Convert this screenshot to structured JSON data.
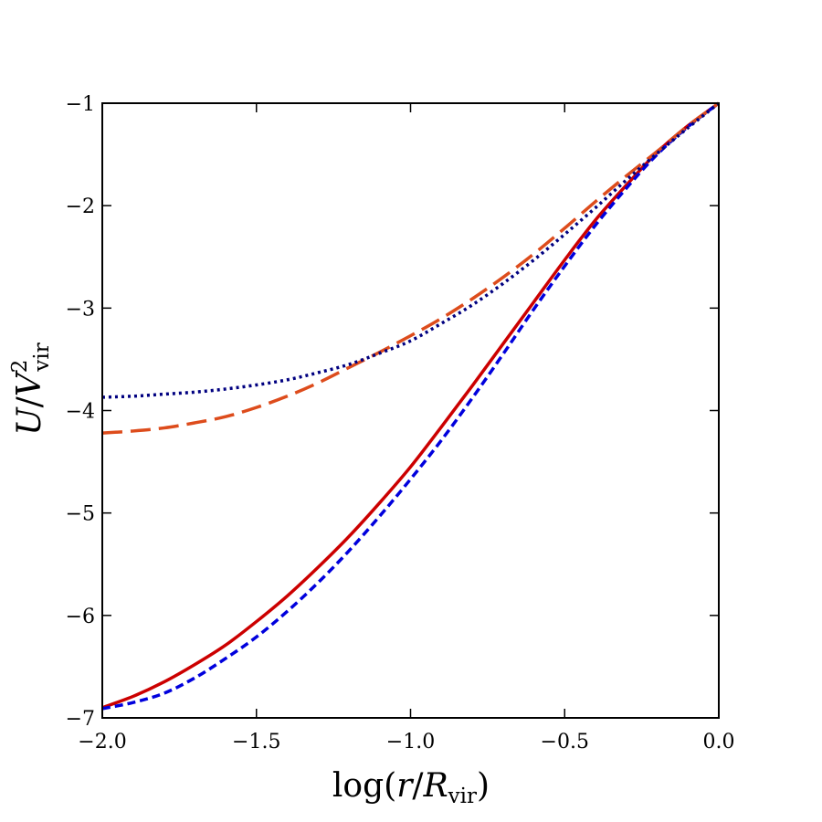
{
  "chart_data": {
    "type": "line",
    "title": "",
    "xlabel": {
      "prefix": "log(",
      "r": "r",
      "slash": "/",
      "R": "R",
      "sub": "vir",
      "suffix": ")"
    },
    "ylabel": {
      "U": "U",
      "slash": "/",
      "V": "V",
      "sup": "2",
      "sub": "vir"
    },
    "xlim": [
      -2.0,
      0.0
    ],
    "ylim": [
      -7,
      -1
    ],
    "xticks": [
      -2.0,
      -1.5,
      -1.0,
      -0.5,
      0.0
    ],
    "xtick_labels": [
      "−2.0",
      "−1.5",
      "−1.0",
      "−0.5",
      "0.0"
    ],
    "yticks": [
      -1,
      -2,
      -3,
      -4,
      -5,
      -6,
      -7
    ],
    "ytick_labels": [
      "−1",
      "−2",
      "−3",
      "−4",
      "−5",
      "−6",
      "−7"
    ],
    "grid": false,
    "series": [
      {
        "name": "solid-red",
        "color": "#cc0000",
        "dash": "solid",
        "x": [
          -2.0,
          -1.9,
          -1.8,
          -1.7,
          -1.6,
          -1.5,
          -1.4,
          -1.3,
          -1.2,
          -1.1,
          -1.0,
          -0.9,
          -0.8,
          -0.7,
          -0.6,
          -0.5,
          -0.4,
          -0.3,
          -0.2,
          -0.1,
          0.0
        ],
        "y": [
          -6.9,
          -6.79,
          -6.65,
          -6.48,
          -6.29,
          -6.06,
          -5.81,
          -5.53,
          -5.23,
          -4.9,
          -4.55,
          -4.16,
          -3.76,
          -3.35,
          -2.94,
          -2.53,
          -2.14,
          -1.8,
          -1.48,
          -1.22,
          -1.0
        ]
      },
      {
        "name": "short-dash-blue",
        "color": "#0000dd",
        "dash": "short",
        "x": [
          -2.0,
          -1.9,
          -1.8,
          -1.7,
          -1.6,
          -1.5,
          -1.4,
          -1.3,
          -1.2,
          -1.1,
          -1.0,
          -0.9,
          -0.8,
          -0.7,
          -0.6,
          -0.5,
          -0.4,
          -0.3,
          -0.2,
          -0.1,
          0.0
        ],
        "y": [
          -6.91,
          -6.85,
          -6.76,
          -6.61,
          -6.42,
          -6.21,
          -5.96,
          -5.68,
          -5.37,
          -5.03,
          -4.67,
          -4.29,
          -3.88,
          -3.45,
          -3.01,
          -2.59,
          -2.19,
          -1.83,
          -1.5,
          -1.23,
          -1.0
        ]
      },
      {
        "name": "long-dash-orange",
        "color": "#dd4c1c",
        "dash": "long",
        "x": [
          -2.0,
          -1.9,
          -1.8,
          -1.7,
          -1.6,
          -1.5,
          -1.4,
          -1.3,
          -1.2,
          -1.1,
          -1.0,
          -0.9,
          -0.8,
          -0.7,
          -0.6,
          -0.5,
          -0.4,
          -0.3,
          -0.2,
          -0.1,
          0.0
        ],
        "y": [
          -4.22,
          -4.2,
          -4.17,
          -4.12,
          -4.06,
          -3.97,
          -3.86,
          -3.73,
          -3.58,
          -3.43,
          -3.27,
          -3.1,
          -2.91,
          -2.7,
          -2.47,
          -2.22,
          -1.96,
          -1.71,
          -1.47,
          -1.22,
          -1.0
        ]
      },
      {
        "name": "dotted-navy",
        "color": "#000080",
        "dash": "dot",
        "x": [
          -2.0,
          -1.9,
          -1.8,
          -1.7,
          -1.6,
          -1.5,
          -1.4,
          -1.3,
          -1.2,
          -1.1,
          -1.0,
          -0.9,
          -0.8,
          -0.7,
          -0.6,
          -0.5,
          -0.4,
          -0.3,
          -0.2,
          -0.1,
          0.0
        ],
        "y": [
          -3.87,
          -3.86,
          -3.84,
          -3.82,
          -3.79,
          -3.75,
          -3.7,
          -3.63,
          -3.55,
          -3.44,
          -3.32,
          -3.15,
          -2.97,
          -2.76,
          -2.53,
          -2.28,
          -2.02,
          -1.75,
          -1.49,
          -1.24,
          -1.0
        ]
      }
    ]
  }
}
